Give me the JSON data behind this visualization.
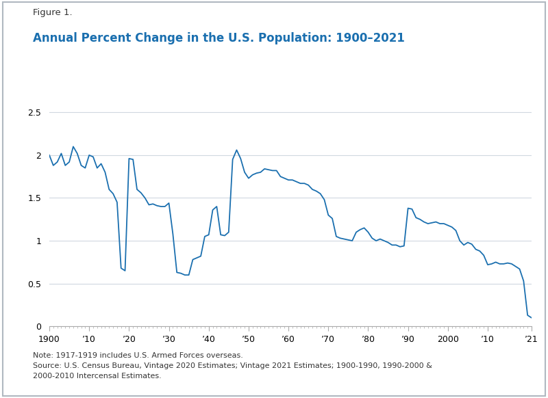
{
  "title_label": "Figure 1.",
  "title_main": "Annual Percent Change in the U.S. Population: 1900–2021",
  "title_label_color": "#333333",
  "title_main_color": "#1a6faf",
  "line_color": "#1a6faf",
  "background_color": "#ffffff",
  "border_color": "#c8c8c8",
  "grid_color": "#d0d8e0",
  "note_text": "Note: 1917-1919 includes U.S. Armed Forces overseas.\nSource: U.S. Census Bureau, Vintage 2020 Estimates; Vintage 2021 Estimates; 1900-1990, 1990-2000 &\n2000-2010 Intercensal Estimates.",
  "ylim": [
    0,
    2.65
  ],
  "yticks": [
    0,
    0.5,
    1.0,
    1.5,
    2.0,
    2.5
  ],
  "xlabel_ticks": [
    1900,
    1910,
    1920,
    1930,
    1940,
    1950,
    1960,
    1970,
    1980,
    1990,
    2000,
    2010,
    2021
  ],
  "xlabel_labels": [
    "1900",
    "’10",
    "’20",
    "’30",
    "’40",
    "’50",
    "’60",
    "’70",
    "’80",
    "’90",
    "2000",
    "’10",
    "’21"
  ],
  "years": [
    1900,
    1901,
    1902,
    1903,
    1904,
    1905,
    1906,
    1907,
    1908,
    1909,
    1910,
    1911,
    1912,
    1913,
    1914,
    1915,
    1916,
    1917,
    1918,
    1919,
    1920,
    1921,
    1922,
    1923,
    1924,
    1925,
    1926,
    1927,
    1928,
    1929,
    1930,
    1931,
    1932,
    1933,
    1934,
    1935,
    1936,
    1937,
    1938,
    1939,
    1940,
    1941,
    1942,
    1943,
    1944,
    1945,
    1946,
    1947,
    1948,
    1949,
    1950,
    1951,
    1952,
    1953,
    1954,
    1955,
    1956,
    1957,
    1958,
    1959,
    1960,
    1961,
    1962,
    1963,
    1964,
    1965,
    1966,
    1967,
    1968,
    1969,
    1970,
    1971,
    1972,
    1973,
    1974,
    1975,
    1976,
    1977,
    1978,
    1979,
    1980,
    1981,
    1982,
    1983,
    1984,
    1985,
    1986,
    1987,
    1988,
    1989,
    1990,
    1991,
    1992,
    1993,
    1994,
    1995,
    1996,
    1997,
    1998,
    1999,
    2000,
    2001,
    2002,
    2003,
    2004,
    2005,
    2006,
    2007,
    2008,
    2009,
    2010,
    2011,
    2012,
    2013,
    2014,
    2015,
    2016,
    2017,
    2018,
    2019,
    2020,
    2021
  ],
  "values": [
    2.0,
    1.88,
    1.92,
    2.02,
    1.88,
    1.92,
    2.1,
    2.02,
    1.88,
    1.85,
    2.0,
    1.98,
    1.85,
    1.9,
    1.8,
    1.6,
    1.55,
    1.45,
    0.68,
    0.65,
    1.96,
    1.95,
    1.6,
    1.56,
    1.5,
    1.42,
    1.43,
    1.41,
    1.4,
    1.4,
    1.44,
    1.08,
    0.63,
    0.62,
    0.6,
    0.6,
    0.78,
    0.8,
    0.82,
    1.05,
    1.07,
    1.36,
    1.4,
    1.07,
    1.06,
    1.1,
    1.95,
    2.06,
    1.96,
    1.8,
    1.73,
    1.77,
    1.79,
    1.8,
    1.84,
    1.83,
    1.82,
    1.82,
    1.75,
    1.73,
    1.71,
    1.71,
    1.69,
    1.67,
    1.67,
    1.65,
    1.6,
    1.58,
    1.55,
    1.48,
    1.3,
    1.26,
    1.05,
    1.03,
    1.02,
    1.01,
    1.0,
    1.1,
    1.13,
    1.15,
    1.1,
    1.03,
    1.0,
    1.02,
    1.0,
    0.98,
    0.95,
    0.95,
    0.93,
    0.94,
    1.38,
    1.37,
    1.27,
    1.25,
    1.22,
    1.2,
    1.21,
    1.22,
    1.2,
    1.2,
    1.18,
    1.16,
    1.12,
    1.0,
    0.95,
    0.98,
    0.96,
    0.9,
    0.88,
    0.83,
    0.72,
    0.73,
    0.75,
    0.73,
    0.73,
    0.74,
    0.73,
    0.7,
    0.67,
    0.53,
    0.13,
    0.1
  ]
}
